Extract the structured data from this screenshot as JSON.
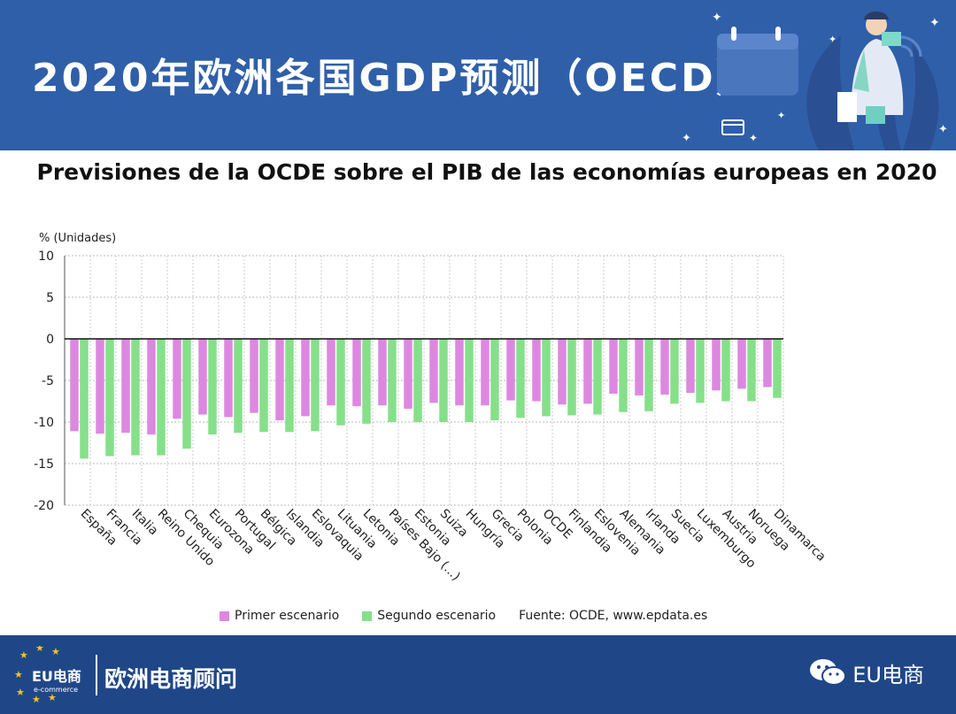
{
  "header": {
    "title": "2020年欧洲各国GDP预测（OECD）"
  },
  "chart_data": {
    "type": "bar",
    "title": "Previsiones de la OCDE sobre el PIB de las economías europeas en 2020",
    "ylabel": "% (Unidades)",
    "ylim": [
      -20,
      10
    ],
    "yticks": [
      10,
      5,
      0,
      -5,
      -10,
      -15,
      -20
    ],
    "grid": true,
    "legend_position": "bottom",
    "categories": [
      "España",
      "Francia",
      "Italia",
      "Reino Unido",
      "Chequia",
      "Eurozona",
      "Portugal",
      "Bélgica",
      "Islandia",
      "Eslovaquia",
      "Lituania",
      "Letonia",
      "Países Bajo (...)",
      "Estonia",
      "Suiza",
      "Hungría",
      "Grecia",
      "Polonia",
      "OCDE",
      "Finlandia",
      "Eslovenia",
      "Alemania",
      "Irlanda",
      "Suecia",
      "Luxemburgo",
      "Austria",
      "Noruega",
      "Dinamarca"
    ],
    "series": [
      {
        "name": "Primer escenario",
        "color": "#dd88e0",
        "values": [
          -11.1,
          -11.4,
          -11.3,
          -11.5,
          -9.6,
          -9.1,
          -9.4,
          -8.9,
          -9.8,
          -9.3,
          -8.0,
          -8.1,
          -8.0,
          -8.4,
          -7.7,
          -8.0,
          -8.0,
          -7.4,
          -7.5,
          -7.9,
          -7.8,
          -6.6,
          -6.8,
          -6.7,
          -6.5,
          -6.2,
          -6.0,
          -5.8
        ]
      },
      {
        "name": "Segundo escenario",
        "color": "#86e08a",
        "values": [
          -14.4,
          -14.1,
          -14.0,
          -14.0,
          -13.2,
          -11.5,
          -11.3,
          -11.2,
          -11.2,
          -11.1,
          -10.4,
          -10.2,
          -10.0,
          -10.0,
          -10.0,
          -10.0,
          -9.8,
          -9.5,
          -9.3,
          -9.2,
          -9.1,
          -8.8,
          -8.7,
          -7.8,
          -7.7,
          -7.5,
          -7.5,
          -7.1
        ]
      }
    ],
    "source": "Fuente: OCDE, www.epdata.es"
  },
  "footer": {
    "logo_text": "EU电商",
    "logo_sub": "e-commerce",
    "brand": "欧洲电商顾问",
    "wechat_label": "EU电商"
  },
  "colors": {
    "header_bg": "#2f5fa8",
    "footer_bg": "#1f4788"
  }
}
